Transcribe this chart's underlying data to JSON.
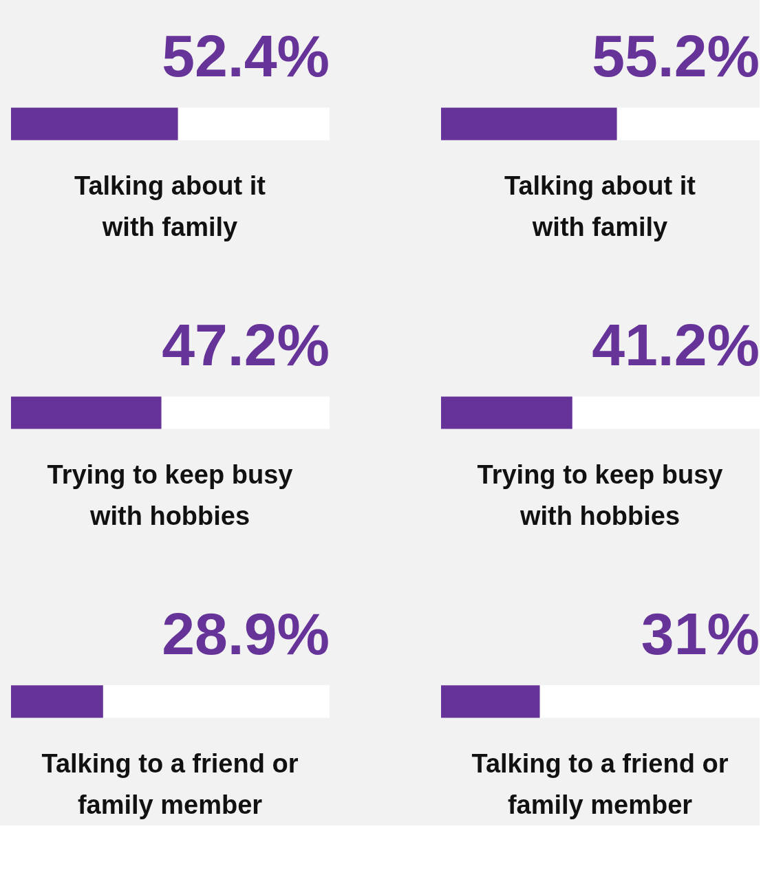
{
  "chart_data": [
    {
      "type": "bar",
      "orientation": "horizontal",
      "categories": [
        "Talking about it\nwith family",
        "Trying to keep busy\nwith hobbies",
        "Talking to a friend or\nfamily member"
      ],
      "values": [
        52.4,
        47.2,
        28.9
      ],
      "value_labels": [
        "52.4%",
        "47.2%",
        "28.9%"
      ],
      "color": "#663399",
      "xlim": [
        0,
        100
      ],
      "tick_labels": false
    },
    {
      "type": "bar",
      "orientation": "horizontal",
      "categories": [
        "Talking about it\nwith family",
        "Trying to keep busy\nwith hobbies",
        "Talking to a friend or\nfamily member"
      ],
      "values": [
        55.2,
        41.2,
        31
      ],
      "value_labels": [
        "55.2%",
        "41.2%",
        "31%"
      ],
      "color": "#663399",
      "xlim": [
        0,
        100
      ],
      "tick_labels": false
    }
  ]
}
